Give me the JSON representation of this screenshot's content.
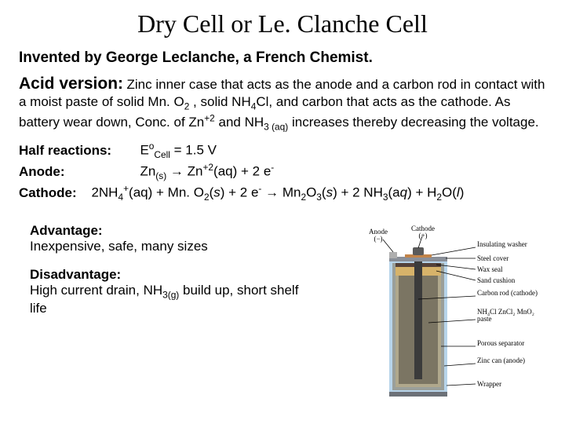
{
  "title": "Dry Cell or Le. Clanche Cell",
  "subtitle": "Invented by George Leclanche, a French Chemist.",
  "acid": {
    "label": "Acid version:",
    "text_html": "Zinc inner case that acts as the anode and a carbon rod in contact with a moist paste of solid Mn. O<sub>2</sub> , solid NH<sub>4</sub>Cl, and carbon that acts as the cathode.  As battery wear down, Conc. of Zn<sup>+2</sup> and NH<sub>3 (aq)</sub> increases thereby decreasing the voltage."
  },
  "half": {
    "label": "Half reactions:",
    "ecell_html": "E<sup>o</sup><sub>Cell</sub> = 1.5 V"
  },
  "anode": {
    "label": "Anode:",
    "eq_html": "Zn<sub>(s)</sub> →   Zn<sup>+2</sup>(aq)  +  2 e<sup>-</sup>"
  },
  "cathode": {
    "label": "Cathode:",
    "eq_html": "2NH<sub>4</sub><sup>+</sup>(aq) + Mn. O<sub>2</sub>(<i>s</i>) +  2 e<sup>-</sup> → Mn<sub>2</sub>O<sub>3</sub>(<i>s</i>) + 2 NH<sub>3</sub>(a<i>q</i>)  + H<sub>2</sub>O(<i>l</i>)"
  },
  "advantage": {
    "title": "Advantage:",
    "text": "Inexpensive, safe, many sizes"
  },
  "disadvantage": {
    "title": "Disadvantage:",
    "text_html": "High current drain,  NH<sub>3(g)</sub> build up, short shelf life"
  },
  "diagram": {
    "colors": {
      "steel": "#8a8f98",
      "steel_dark": "#6c7178",
      "carbon": "#3b3b3b",
      "paste": "#7b7563",
      "porous": "#b0a88c",
      "zinc": "#9a9f9a",
      "wrapper": "#b7d4ea",
      "washer": "#c2844a",
      "sand": "#d7b36a",
      "seal": "#55423a",
      "anode_cap": "#afafaf",
      "cathode_cap": "#5a5a5a",
      "leader": "#000000",
      "bg": "#ffffff"
    },
    "labels": {
      "anode": "Anode",
      "minus": "(−)",
      "cathode": "Cathode",
      "plus": "(+)",
      "ins_washer": "Insulating washer",
      "steel_cover": "Steel cover",
      "wax_seal": "Wax seal",
      "sand_cushion": "Sand cushion",
      "carbon_rod": "Carbon rod (cathode)",
      "paste": "NH₄Cl ZnCl₂ MnO₂ paste",
      "porous": "Porous separator",
      "zinc_can": "Zinc can (anode)",
      "wrapper": "Wrapper"
    }
  }
}
